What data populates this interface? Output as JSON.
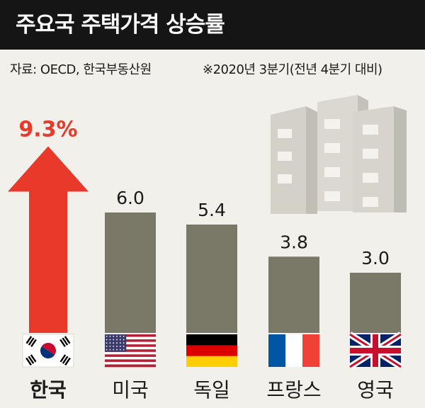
{
  "header": {
    "title": "주요국 주택가격 상승률",
    "source": "자료: OECD, 한국부동산원",
    "note": "※2020년 3분기(전년 4분기 대비)"
  },
  "colors": {
    "highlight": "#e8392b",
    "bar": "#7a7866",
    "title_bg": "#151515",
    "background": "#f1f0ea"
  },
  "chart_data": {
    "type": "bar",
    "title": "주요국 주택가격 상승률",
    "categories": [
      "한국",
      "미국",
      "독일",
      "프랑스",
      "영국"
    ],
    "values": [
      9.3,
      6.0,
      5.4,
      3.8,
      3.0
    ],
    "value_labels": [
      "9.3%",
      "6.0",
      "5.4",
      "3.8",
      "3.0"
    ],
    "flag_icons": [
      "south-korea-flag-icon",
      "usa-flag-icon",
      "germany-flag-icon",
      "france-flag-icon",
      "uk-flag-icon"
    ],
    "highlight_index": 0,
    "highlight_style": "arrow",
    "xlabel": "",
    "ylabel": "",
    "ylim": [
      0,
      10
    ],
    "grid": false,
    "legend": "none"
  }
}
